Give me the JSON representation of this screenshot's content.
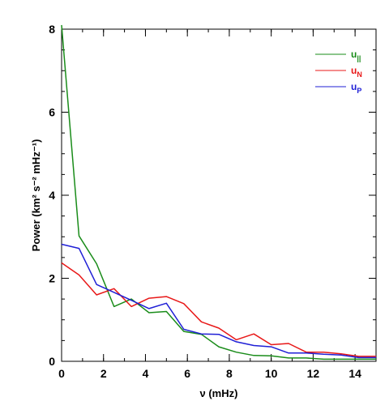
{
  "chart_data": {
    "type": "line",
    "title": "",
    "xlabel": "ν (mHz)",
    "ylabel": "Power (km² s⁻² mHz⁻¹)",
    "xlim": [
      0,
      15
    ],
    "ylim": [
      0,
      8
    ],
    "xticks": [
      0,
      2,
      4,
      6,
      8,
      10,
      12,
      14
    ],
    "yticks": [
      0,
      2,
      4,
      6,
      8
    ],
    "legend_position": "top-right",
    "series": [
      {
        "name": "u||",
        "legend_base": "u",
        "legend_sub": "||",
        "color": "#1a8c1a",
        "x": [
          0,
          0.83,
          1.67,
          2.5,
          3.33,
          4.17,
          5.0,
          5.83,
          6.67,
          7.5,
          8.33,
          9.17,
          10.0,
          10.83,
          11.67,
          12.5,
          13.33,
          14.17,
          15.0
        ],
        "y": [
          8.1,
          3.02,
          2.35,
          1.32,
          1.5,
          1.17,
          1.2,
          0.72,
          0.65,
          0.35,
          0.22,
          0.14,
          0.13,
          0.08,
          0.08,
          0.05,
          0.05,
          0.05,
          0.05
        ]
      },
      {
        "name": "uN",
        "legend_base": "u",
        "legend_sub": "N",
        "color": "#e81818",
        "x": [
          0,
          0.83,
          1.67,
          2.5,
          3.33,
          4.17,
          5.0,
          5.83,
          6.67,
          7.5,
          8.33,
          9.17,
          10.0,
          10.83,
          11.67,
          12.5,
          13.33,
          14.17,
          15.0
        ],
        "y": [
          2.37,
          2.08,
          1.6,
          1.75,
          1.32,
          1.52,
          1.56,
          1.39,
          0.95,
          0.8,
          0.52,
          0.66,
          0.4,
          0.43,
          0.22,
          0.22,
          0.18,
          0.12,
          0.12
        ]
      },
      {
        "name": "uP",
        "legend_base": "u",
        "legend_sub": "P",
        "color": "#1f1fd6",
        "x": [
          0,
          0.83,
          1.67,
          2.5,
          3.33,
          4.17,
          5.0,
          5.83,
          6.67,
          7.5,
          8.33,
          9.17,
          10.0,
          10.83,
          11.67,
          12.5,
          13.33,
          14.17,
          15.0
        ],
        "y": [
          2.82,
          2.72,
          1.85,
          1.66,
          1.47,
          1.27,
          1.4,
          0.77,
          0.66,
          0.65,
          0.47,
          0.38,
          0.35,
          0.2,
          0.2,
          0.17,
          0.15,
          0.09,
          0.09
        ]
      }
    ]
  }
}
